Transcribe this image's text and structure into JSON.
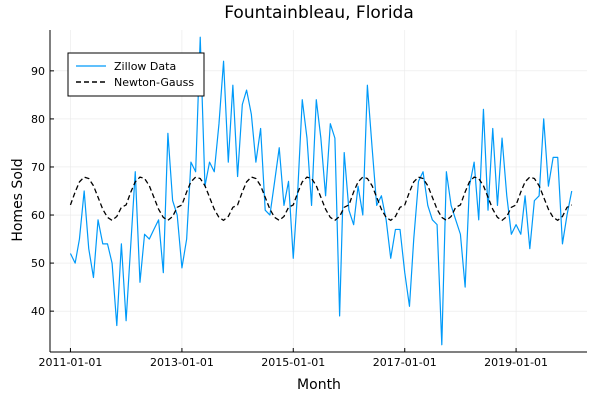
{
  "chart_data": {
    "type": "line",
    "title": "Fountainbleau, Florida",
    "xlabel": "Month",
    "ylabel": "Homes Sold",
    "x_start": "2011-01-01",
    "x_interval": "month",
    "x_ticks": [
      "2011-01-01",
      "2013-01-01",
      "2015-01-01",
      "2017-01-01",
      "2019-01-01"
    ],
    "xlim": [
      "2010-08-20",
      "2020-04-10"
    ],
    "ylim": [
      31.5,
      98.5
    ],
    "y_ticks": [
      40,
      50,
      60,
      70,
      80,
      90
    ],
    "grid": true,
    "legend_position": "top-left",
    "series": [
      {
        "name": "Zillow Data",
        "color": "#009af9",
        "style": "solid",
        "values": [
          52,
          50,
          55,
          65,
          53,
          47,
          59,
          54,
          54,
          50,
          37,
          54,
          38,
          54,
          69,
          46,
          56,
          55,
          57,
          59,
          48,
          77,
          63,
          60,
          49,
          55,
          71,
          69,
          97,
          66,
          71,
          69,
          79,
          92,
          71,
          87,
          68,
          83,
          86,
          81,
          71,
          78,
          61,
          60,
          67,
          74,
          62,
          67,
          51,
          66,
          84,
          76,
          62,
          84,
          76,
          64,
          79,
          76,
          39,
          73,
          61,
          58,
          66,
          60,
          87,
          74,
          62,
          64,
          59,
          51,
          57,
          57,
          48,
          41,
          55,
          67,
          69,
          62,
          59,
          58,
          33,
          69,
          62,
          59,
          56,
          45,
          66,
          71,
          59,
          82,
          61,
          78,
          62,
          76,
          64,
          56,
          58,
          56,
          64,
          53,
          63,
          64,
          80,
          66,
          72,
          72,
          54,
          60,
          65
        ]
      },
      {
        "name": "Newton-Gauss",
        "color": "#000000",
        "style": "dashed",
        "values": [
          62.1,
          64.8,
          66.9,
          67.9,
          67.6,
          66.1,
          63.7,
          61.2,
          59.5,
          58.9,
          59.7,
          61.6
        ]
      }
    ]
  }
}
